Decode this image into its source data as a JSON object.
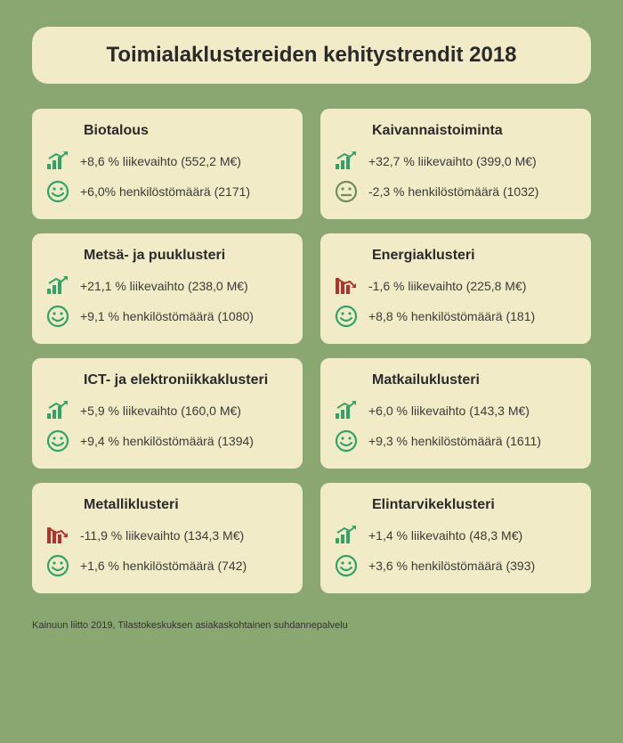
{
  "colors": {
    "background": "#8aa772",
    "card_bg": "#f2ebc7",
    "text": "#2a2a2a",
    "icon_green": "#2fa36a",
    "icon_red": "#b6302e",
    "icon_neutral": "#6e8f5a"
  },
  "title": "Toimialaklustereiden kehitystrendit 2018",
  "footer": "Kainuun liitto 2019, Tilastokeskuksen asiakaskohtainen suhdannepalvelu",
  "cards": [
    {
      "name": "Biotalous",
      "revenue": {
        "text": "+8,6 % liikevaihto (552,2 M€)",
        "trend": "up"
      },
      "staff": {
        "text": "+6,0% henkilöstömäärä (2171)",
        "mood": "happy"
      }
    },
    {
      "name": "Kaivannaistoiminta",
      "revenue": {
        "text": "+32,7 % liikevaihto (399,0 M€)",
        "trend": "up"
      },
      "staff": {
        "text": "-2,3 % henkilöstömäärä (1032)",
        "mood": "neutral"
      }
    },
    {
      "name": "Metsä- ja puuklusteri",
      "revenue": {
        "text": "+21,1 % liikevaihto (238,0 M€)",
        "trend": "up"
      },
      "staff": {
        "text": "+9,1 % henkilöstömäärä (1080)",
        "mood": "happy"
      }
    },
    {
      "name": "Energiaklusteri",
      "revenue": {
        "text": "-1,6 % liikevaihto (225,8 M€)",
        "trend": "down"
      },
      "staff": {
        "text": "+8,8 % henkilöstömäärä (181)",
        "mood": "happy"
      }
    },
    {
      "name": "ICT- ja elektroniikkaklusteri",
      "revenue": {
        "text": "+5,9 % liikevaihto (160,0 M€)",
        "trend": "up"
      },
      "staff": {
        "text": "+9,4 % henkilöstömäärä (1394)",
        "mood": "happy"
      }
    },
    {
      "name": "Matkailuklusteri",
      "revenue": {
        "text": "+6,0 % liikevaihto (143,3 M€)",
        "trend": "up"
      },
      "staff": {
        "text": "+9,3 % henkilöstömäärä (1611)",
        "mood": "happy"
      }
    },
    {
      "name": "Metalliklusteri",
      "revenue": {
        "text": "-11,9 % liikevaihto (134,3 M€)",
        "trend": "down"
      },
      "staff": {
        "text": "+1,6 % henkilöstömäärä (742)",
        "mood": "happy"
      }
    },
    {
      "name": "Elintarvikeklusteri",
      "revenue": {
        "text": "+1,4 % liikevaihto (48,3 M€)",
        "trend": "up"
      },
      "staff": {
        "text": "+3,6 % henkilöstömäärä (393)",
        "mood": "happy"
      }
    }
  ]
}
